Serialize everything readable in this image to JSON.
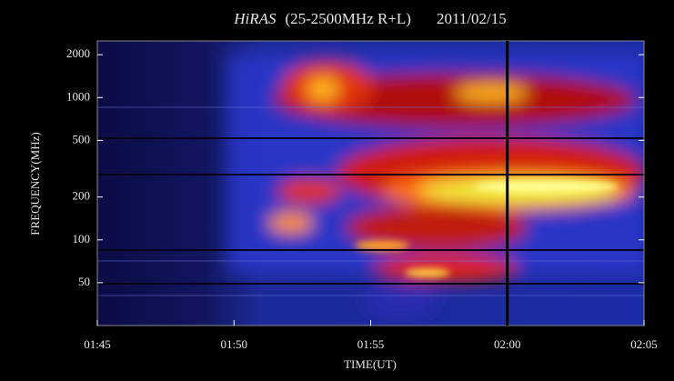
{
  "chart_data": {
    "type": "spectrogram",
    "title": "HiRAS",
    "subtitle": "(25-2500MHz R+L)",
    "date": "2011/02/15",
    "x_label": "TIME(UT)",
    "y_label": "FREQUENCY(MHz)",
    "xlim": [
      "01:45",
      "02:05"
    ],
    "xticks": [
      "01:45",
      "01:50",
      "01:55",
      "02:00",
      "02:05"
    ],
    "ylim": [
      25,
      2500
    ],
    "yticks": [
      2000,
      1000,
      500,
      200,
      100,
      50
    ],
    "log_y": true,
    "marker_time": "02:00"
  }
}
